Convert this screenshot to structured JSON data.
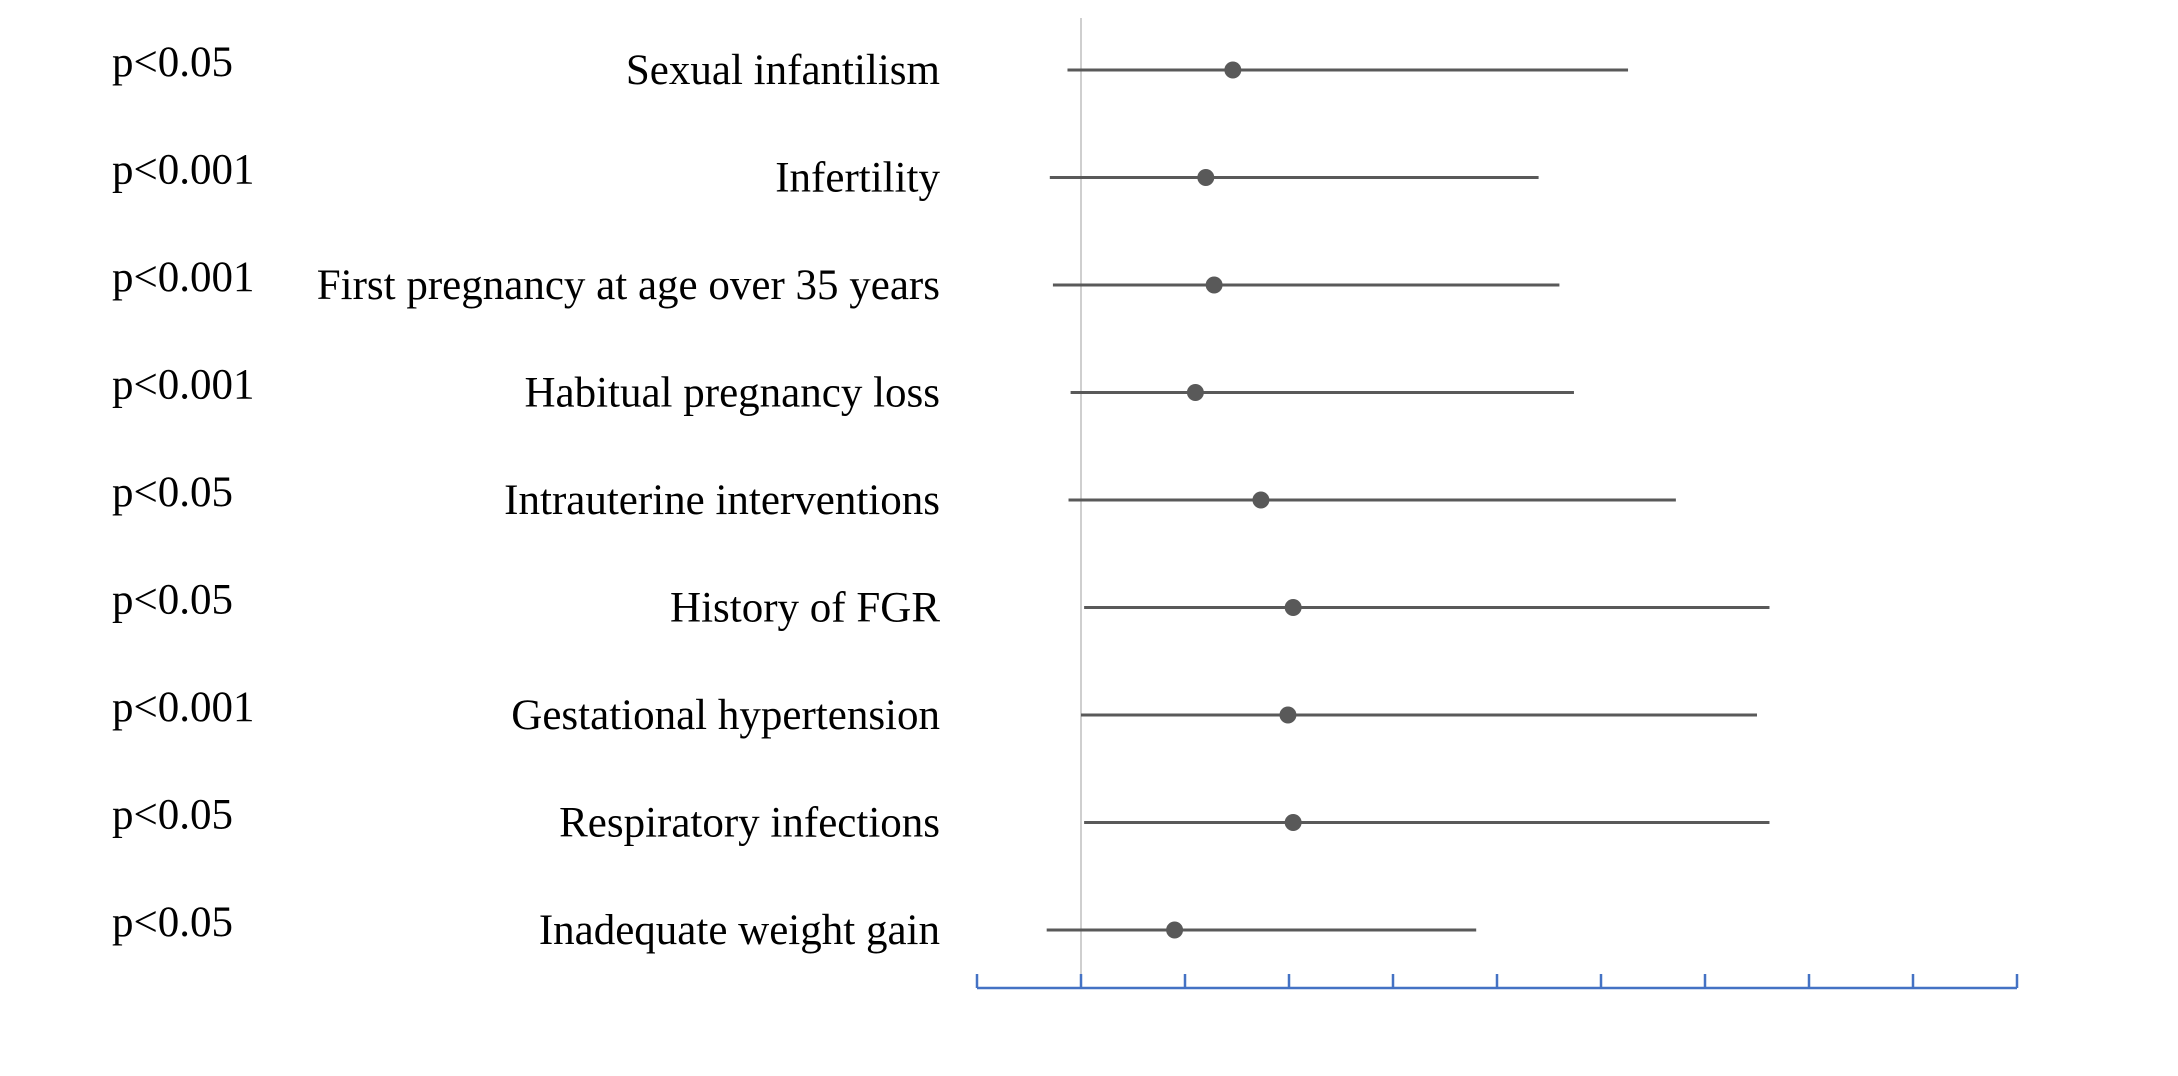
{
  "chart_data": {
    "type": "forest",
    "title": "",
    "xlabel": "",
    "ylabel": "",
    "x_axis": {
      "min": 0,
      "max": 10,
      "tick_interval": 1,
      "tick_labels_shown": false,
      "reference_line_at": 1
    },
    "grid": false,
    "legend": "none",
    "colors": {
      "marker": "#595959",
      "ci_line": "#595959",
      "axis": "#4472C4",
      "reference_line": "#BFBFBF",
      "text": "#000000"
    },
    "rows": [
      {
        "label": "Sexual infantilism",
        "p_value": "p<0.05",
        "estimate": 2.46,
        "ci_low": 0.87,
        "ci_high": 6.26
      },
      {
        "label": "Infertility",
        "p_value": "p<0.001",
        "estimate": 2.2,
        "ci_low": 0.7,
        "ci_high": 5.4
      },
      {
        "label": "First pregnancy at age over 35 years",
        "p_value": "p<0.001",
        "estimate": 2.28,
        "ci_low": 0.73,
        "ci_high": 5.6
      },
      {
        "label": "Habitual pregnancy loss",
        "p_value": "p<0.001",
        "estimate": 2.1,
        "ci_low": 0.9,
        "ci_high": 5.74
      },
      {
        "label": "Intrauterine interventions",
        "p_value": "p<0.05",
        "estimate": 2.73,
        "ci_low": 0.88,
        "ci_high": 6.72
      },
      {
        "label": "History of FGR",
        "p_value": "p<0.05",
        "estimate": 3.04,
        "ci_low": 1.03,
        "ci_high": 7.62
      },
      {
        "label": "Gestational hypertension",
        "p_value": "p<0.001",
        "estimate": 2.99,
        "ci_low": 1.0,
        "ci_high": 7.5
      },
      {
        "label": "Respiratory infections",
        "p_value": "p<0.05",
        "estimate": 3.04,
        "ci_low": 1.03,
        "ci_high": 7.62
      },
      {
        "label": "Inadequate weight gain",
        "p_value": "p<0.05",
        "estimate": 1.9,
        "ci_low": 0.67,
        "ci_high": 4.8
      }
    ]
  }
}
